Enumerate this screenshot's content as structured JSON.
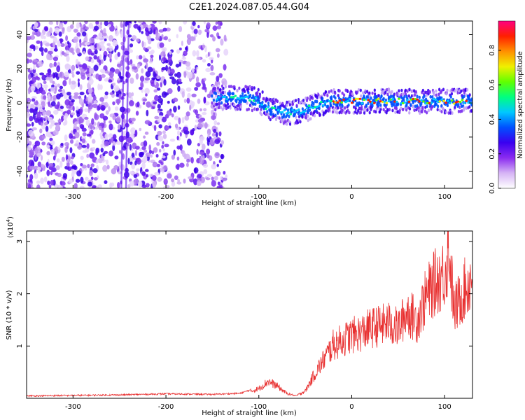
{
  "title": "C2E1.2024.087.05.44.G04",
  "chart_data": [
    {
      "type": "heatmap",
      "xlabel": "Height of straight line (km)",
      "ylabel": "Frequency (Hz)",
      "xlim": [
        -350,
        130
      ],
      "ylim": [
        -50,
        48
      ],
      "x_ticks": [
        -300,
        -200,
        -100,
        0,
        100
      ],
      "y_ticks": [
        -40,
        -20,
        0,
        20,
        40
      ],
      "colorbar": {
        "label": "Normalized spectral amplitude",
        "range": [
          0,
          0.97
        ],
        "ticks": [
          0.0,
          0.2,
          0.4,
          0.6,
          0.8
        ],
        "tick_labels": [
          "0.0",
          "0.2",
          "0.4",
          "0.6",
          "0.8"
        ],
        "colors": [
          "#ffffff",
          "#d6b4f5",
          "#8b2cf0",
          "#3a00f0",
          "#0050ff",
          "#00c8ff",
          "#00ff80",
          "#60ff00",
          "#f0f000",
          "#ff9000",
          "#ff2000",
          "#ff0080"
        ]
      },
      "ridge": {
        "x": [
          -150,
          -130,
          -110,
          -100,
          -90,
          -80,
          -70,
          -60,
          -50,
          -40,
          -30,
          -20,
          -10,
          0,
          20,
          40,
          60,
          80,
          100,
          120,
          130
        ],
        "y": [
          3,
          3,
          3,
          1,
          -3,
          -5,
          -6,
          -5,
          -4,
          -2,
          0,
          1,
          1,
          1,
          1,
          1,
          1,
          1,
          1,
          1,
          1
        ]
      },
      "grid": false
    },
    {
      "type": "line",
      "xlabel": "Height of straight line (km)",
      "ylabel": "SNR (10 * v/v)",
      "y_multiplier_label": "(x10",
      "y_multiplier_exp": "4",
      "xlim": [
        -350,
        130
      ],
      "ylim": [
        0,
        3.2
      ],
      "x_ticks": [
        -300,
        -200,
        -100,
        0,
        100
      ],
      "y_ticks": [
        1,
        2,
        3
      ],
      "series": [
        {
          "color": "#e83030",
          "x": [
            -350,
            -300,
            -250,
            -200,
            -150,
            -120,
            -100,
            -90,
            -80,
            -70,
            -60,
            -50,
            -40,
            -30,
            -20,
            -10,
            0,
            10,
            20,
            30,
            40,
            50,
            60,
            70,
            80,
            90,
            100,
            105,
            110,
            120,
            130
          ],
          "y": [
            0.03,
            0.04,
            0.05,
            0.07,
            0.06,
            0.08,
            0.2,
            0.35,
            0.25,
            0.1,
            0.05,
            0.15,
            0.5,
            0.8,
            1.1,
            1.2,
            1.3,
            1.35,
            1.45,
            1.5,
            1.55,
            1.45,
            1.8,
            1.6,
            2.1,
            2.4,
            2.6,
            3.1,
            1.8,
            2.2,
            2.5
          ]
        }
      ],
      "grid": false
    }
  ]
}
